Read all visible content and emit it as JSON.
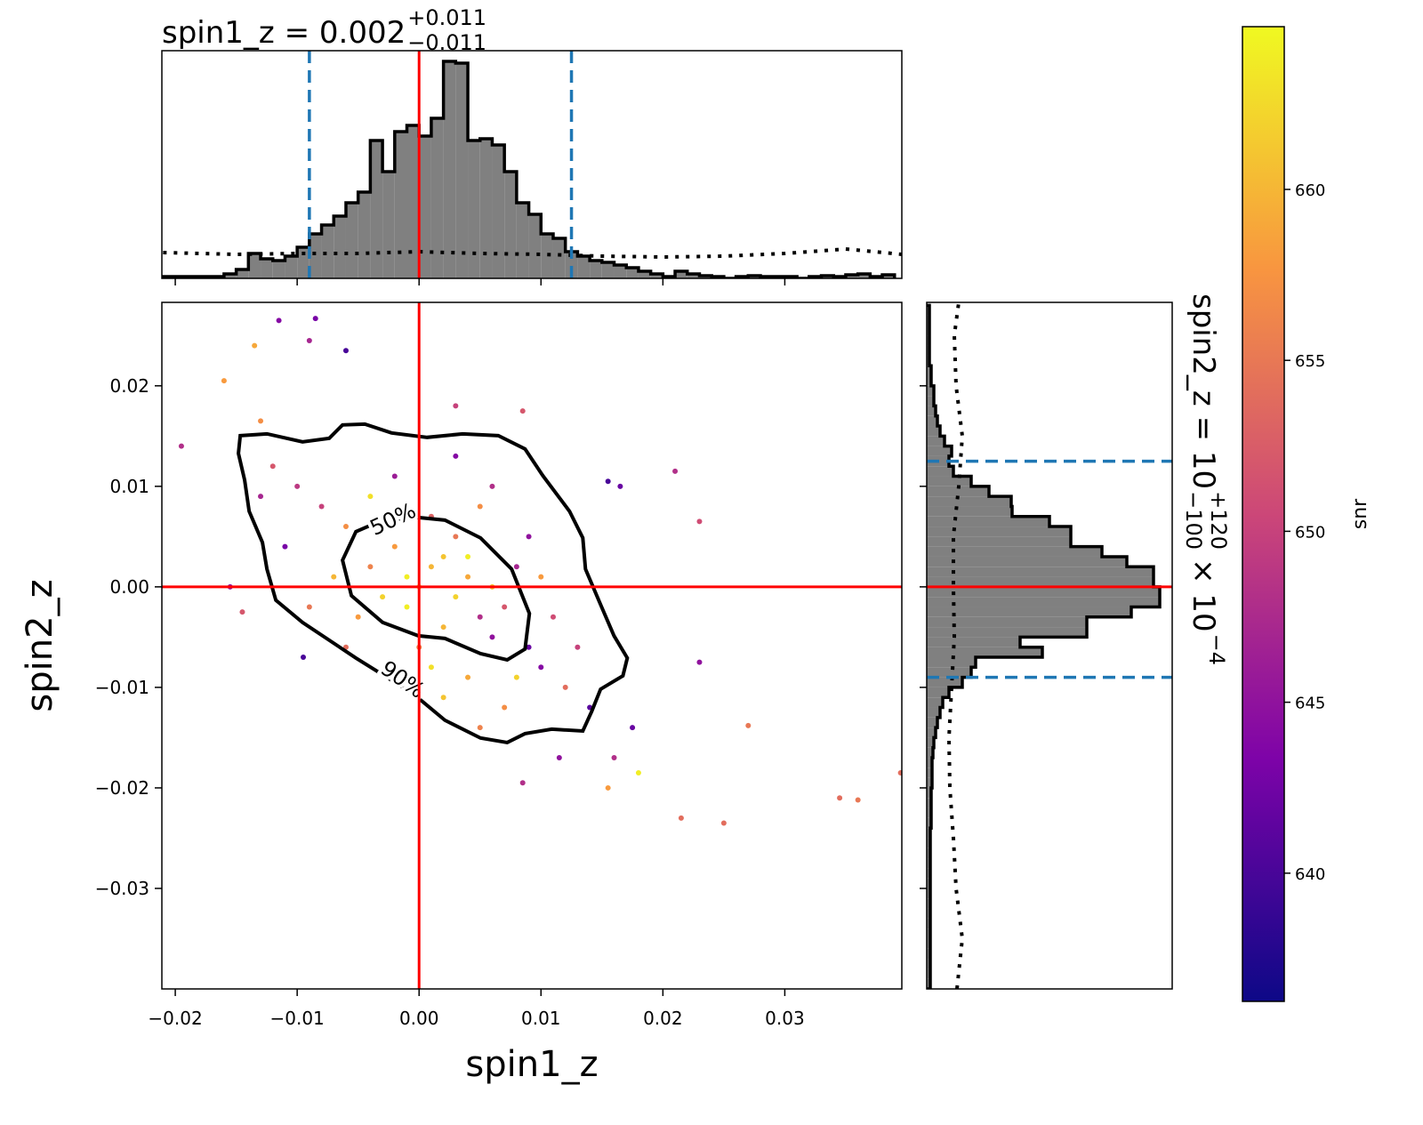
{
  "chart_data": [
    {
      "type": "histogram",
      "title": {
        "text": "spin1_z = 0.002",
        "upper": "+0.011",
        "lower": "−0.011"
      },
      "bins": [
        -0.021,
        -0.02,
        -0.019,
        -0.018,
        -0.017,
        -0.016,
        -0.015,
        -0.014,
        -0.013,
        -0.012,
        -0.011,
        -0.01,
        -0.009,
        -0.008,
        -0.007,
        -0.006,
        -0.005,
        -0.004,
        -0.003,
        -0.002,
        -0.001,
        0,
        0.001,
        0.002,
        0.003,
        0.004,
        0.005,
        0.006,
        0.007,
        0.008,
        0.009,
        0.01,
        0.011,
        0.012,
        0.013,
        0.014,
        0.015,
        0.016,
        0.017,
        0.018,
        0.019,
        0.02,
        0.021,
        0.022,
        0.023,
        0.024,
        0.025,
        0.026,
        0.027,
        0.028,
        0.029,
        0.03,
        0.031,
        0.032,
        0.033,
        0.034,
        0.035,
        0.036,
        0.037,
        0.038,
        0.039
      ],
      "counts": [
        2,
        2,
        2,
        2,
        2,
        5,
        10,
        28,
        22,
        20,
        25,
        35,
        50,
        60,
        70,
        85,
        97,
        155,
        120,
        165,
        172,
        160,
        180,
        244,
        242,
        155,
        157,
        150,
        120,
        85,
        72,
        50,
        45,
        30,
        25,
        20,
        18,
        15,
        12,
        8,
        5,
        2,
        8,
        5,
        3,
        2,
        0,
        2,
        3,
        2,
        2,
        2,
        0,
        2,
        3,
        2,
        4,
        5,
        2,
        4
      ],
      "color": "#808080",
      "xlim": [
        -0.0211,
        0.0396
      ],
      "ylim": [
        0,
        256
      ],
      "prior": {
        "x": [
          -0.021,
          -0.015,
          -0.01,
          -0.005,
          0,
          0.005,
          0.01,
          0.015,
          0.02,
          0.025,
          0.03,
          0.035,
          0.0396
        ],
        "values": [
          29,
          27,
          28,
          28,
          30,
          28,
          27,
          25,
          24,
          25,
          28,
          33,
          27
        ]
      },
      "quantiles": [
        -0.009,
        0.0125
      ],
      "truth": 0
    },
    {
      "type": "scatter",
      "xlabel": "spin1_z",
      "ylabel": "spin2_z",
      "x": [
        0.001,
        0.003,
        -0.002,
        0.005,
        0,
        0.002,
        -0.004,
        0.006,
        0.004,
        -0.001,
        0.007,
        -0.006,
        0.003,
        0.009,
        -0.008,
        0.002,
        -0.003,
        0.008,
        0.001,
        -0.005,
        0.01,
        -0.01,
        0.005,
        0.011,
        -0.007,
        0,
        0.004,
        -0.002,
        0.012,
        -0.011,
        0.006,
        0.013,
        -0.009,
        0.002,
        0.007,
        -0.004,
        0.009,
        -0.012,
        0.003,
        0.014,
        -0.006,
        0.01,
        0.005,
        -0.013,
        0.001,
        0.008,
        -0.003,
        0.004,
        -0.001,
        0.006,
        -0.0195,
        0.025,
        0.0345,
        0.036,
        0.027,
        0.0215,
        0.0155,
        0.018,
        -0.0135,
        -0.016,
        -0.0115,
        -0.0085,
        -0.009,
        0.0155,
        0.0165,
        0.021,
        0.023,
        0.023,
        0.0175,
        0.016,
        -0.013,
        -0.006,
        0.0085,
        -0.0155,
        -0.0145,
        -0.0095,
        0.0115,
        0.003,
        0.0085,
        0.0395
      ],
      "values": [
        0.002,
        -0.001,
        0.004,
        -0.003,
        0,
        0.003,
        0.002,
        -0.005,
        0.001,
        -0.002,
        -0.002,
        0.006,
        0.005,
        -0.006,
        0.008,
        -0.004,
        -0.001,
        0.002,
        0.007,
        -0.003,
        -0.008,
        0.01,
        0.008,
        -0.003,
        0.001,
        -0.006,
        -0.009,
        0.011,
        -0.01,
        0.004,
        0.01,
        -0.006,
        -0.002,
        -0.011,
        -0.012,
        0.009,
        0.005,
        0.012,
        0.013,
        -0.012,
        -0.006,
        0.001,
        -0.014,
        0.009,
        -0.008,
        -0.009,
        0.006,
        0.003,
        0.001,
        0,
        0.014,
        -0.0235,
        -0.021,
        -0.0212,
        -0.0138,
        -0.023,
        -0.02,
        -0.0185,
        0.024,
        0.0205,
        0.0265,
        0.0267,
        0.0245,
        0.0105,
        0.01,
        0.0115,
        0.0065,
        -0.0075,
        -0.014,
        -0.017,
        0.0165,
        0.0235,
        -0.0195,
        0,
        -0.0025,
        -0.007,
        -0.017,
        0.018,
        0.0175,
        -0.0185
      ],
      "snr": [
        660,
        662,
        658,
        648,
        663,
        661,
        656,
        645,
        659,
        664,
        652,
        657,
        655,
        642,
        650,
        660,
        662,
        647,
        653,
        658,
        644,
        649,
        657,
        651,
        660,
        656,
        659,
        646,
        654,
        643,
        648,
        650,
        655,
        661,
        657,
        663,
        645,
        652,
        644,
        641,
        654,
        658,
        656,
        647,
        663,
        662,
        660,
        664,
        664,
        661,
        648,
        654,
        654,
        655,
        655,
        654,
        658,
        664,
        659,
        658,
        644,
        643,
        647,
        640,
        642,
        648,
        651,
        645,
        642,
        648,
        657,
        640,
        648,
        645,
        652,
        640,
        645,
        650,
        652,
        654
      ],
      "xlim": [
        -0.0211,
        0.0396
      ],
      "ylim": [
        -0.04,
        0.0283
      ],
      "xticks": [
        {
          "value": -0.02,
          "label": "−0.02"
        },
        {
          "value": -0.01,
          "label": "−0.01"
        },
        {
          "value": 0,
          "label": "0.00"
        },
        0.01,
        0.02,
        0.03
      ],
      "yticks": [
        {
          "value": -0.03,
          "label": "−0.03"
        },
        {
          "value": -0.02,
          "label": "−0.02"
        },
        {
          "value": -0.01,
          "label": "−0.01"
        },
        {
          "value": 0,
          "label": "0.00"
        },
        0.01,
        0.02
      ],
      "contours": [
        {
          "label": "50%",
          "x": [
            -7e-05,
            0.00212,
            0.00504,
            0.00759,
            0.00905,
            0.00869,
            0.00723,
            0.00504,
            0.00212,
            -7e-05,
            -0.00299,
            -0.00555,
            -0.00628,
            -0.00518,
            -0.00299
          ],
          "values": [
            0.0069,
            0.00664,
            0.00487,
            0.00177,
            -0.00265,
            -0.00619,
            -0.00726,
            -0.00664,
            -0.00513,
            -0.00487,
            -0.00354,
            -0.00088,
            0.00265,
            0.00549,
            0.00664
          ]
        },
        {
          "label": "90%",
          "x": [
            -0.01467,
            -0.01248,
            -0.00956,
            -0.00737,
            -0.00628,
            -0.00445,
            -0.00226,
            0.00066,
            0.00358,
            0.0065,
            0.00869,
            0.01015,
            0.01234,
            0.01343,
            0.01365,
            0.01489,
            0.01599,
            0.01708,
            0.01672,
            0.01489,
            0.01416,
            0.01343,
            0.01088,
            0.00869,
            0.00723,
            0.00504,
            0.00212,
            -7e-05,
            -0.00226,
            -0.00518,
            -0.00737,
            -0.00956,
            -0.01175,
            -0.01248,
            -0.01285,
            -0.01394,
            -0.01431,
            -0.01482
          ],
          "values": [
            0.01504,
            0.01522,
            0.01442,
            0.01478,
            0.01611,
            0.01619,
            0.01531,
            0.01487,
            0.01522,
            0.01504,
            0.01372,
            0.01106,
            0.00752,
            0.00487,
            0.00177,
            -0.00177,
            -0.00487,
            -0.00708,
            -0.00885,
            -0.01018,
            -0.01239,
            -0.01434,
            -0.01416,
            -0.0146,
            -0.01549,
            -0.01504,
            -0.01327,
            -0.01106,
            -0.00929,
            -0.00708,
            -0.00531,
            -0.00354,
            -0.00133,
            0.00177,
            0.00442,
            0.00752,
            0.01062,
            0.01327
          ]
        }
      ],
      "truth": [
        0,
        0
      ],
      "colorbar": {
        "label": "snr",
        "lim": [
          636.25,
          664.76
        ],
        "ticks": [
          640,
          645,
          650,
          655,
          660
        ],
        "colormap": "plasma"
      }
    },
    {
      "type": "histogram",
      "orientation": "horizontal",
      "label": {
        "text": "spin2_z = 10",
        "upper": "+120",
        "lower": "−100",
        "suffix": "× 10",
        "exponent": "−4"
      },
      "bins": [
        -0.04,
        -0.039,
        -0.038,
        -0.037,
        -0.036,
        -0.035,
        -0.034,
        -0.033,
        -0.032,
        -0.031,
        -0.03,
        -0.029,
        -0.028,
        -0.027,
        -0.026,
        -0.025,
        -0.024,
        -0.023,
        -0.022,
        -0.021,
        -0.02,
        -0.019,
        -0.018,
        -0.017,
        -0.016,
        -0.015,
        -0.014,
        -0.013,
        -0.012,
        -0.011,
        -0.01,
        -0.009,
        -0.008,
        -0.007,
        -0.006,
        -0.005,
        -0.004,
        -0.003,
        -0.002,
        -0.001,
        0,
        0.001,
        0.002,
        0.003,
        0.004,
        0.005,
        0.006,
        0.007,
        0.008,
        0.009,
        0.01,
        0.011,
        0.012,
        0.013,
        0.014,
        0.015,
        0.016,
        0.017,
        0.018,
        0.019,
        0.02,
        0.021,
        0.022,
        0.023,
        0.024,
        0.025,
        0.026,
        0.027,
        0.028
      ],
      "counts": [
        4,
        4,
        4,
        4,
        4,
        4,
        4,
        4,
        4,
        4,
        4,
        4,
        4,
        4,
        4,
        4,
        5,
        5,
        5,
        5,
        6,
        6,
        6,
        7,
        8,
        10,
        12,
        15,
        18,
        25,
        40,
        50,
        55,
        130,
        105,
        180,
        180,
        230,
        262,
        262,
        255,
        255,
        225,
        197,
        162,
        162,
        138,
        96,
        95,
        70,
        50,
        30,
        25,
        28,
        20,
        15,
        12,
        10,
        8,
        8,
        5,
        5,
        3,
        3,
        3,
        3,
        3,
        3
      ],
      "color": "#808080",
      "xlim": [
        0,
        276
      ],
      "ylim": [
        -0.04,
        0.0283
      ],
      "prior": {
        "y": [
          -0.04,
          -0.035,
          -0.03,
          -0.025,
          -0.02,
          -0.015,
          -0.01,
          -0.005,
          0,
          0.005,
          0.01,
          0.015,
          0.02,
          0.025,
          0.0283
        ],
        "values": [
          34,
          40,
          33,
          30,
          26,
          25,
          28,
          31,
          30,
          30,
          36,
          40,
          33,
          31,
          36
        ]
      },
      "quantiles": [
        -0.009,
        0.0125
      ],
      "truth": 0
    }
  ]
}
